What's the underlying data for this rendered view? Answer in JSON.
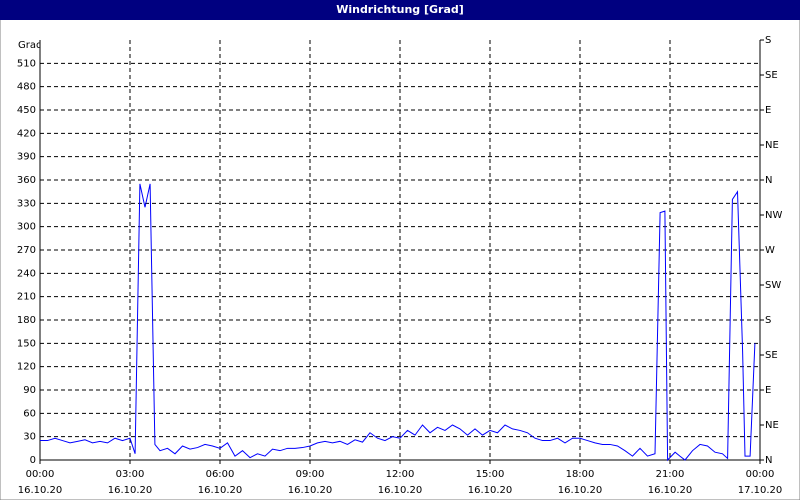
{
  "chart_data": {
    "type": "line",
    "title": "Windrichtung [Grad]",
    "y_label": "Grad",
    "x": [
      0,
      0.25,
      0.5,
      0.75,
      1,
      1.25,
      1.5,
      1.75,
      2,
      2.25,
      2.5,
      2.75,
      3,
      3.17,
      3.33,
      3.5,
      3.67,
      3.83,
      4,
      4.25,
      4.5,
      4.75,
      5,
      5.25,
      5.5,
      5.75,
      6,
      6.25,
      6.5,
      6.75,
      7,
      7.25,
      7.5,
      7.75,
      8,
      8.25,
      8.5,
      8.75,
      9,
      9.25,
      9.5,
      9.75,
      10,
      10.25,
      10.5,
      10.75,
      11,
      11.25,
      11.5,
      11.75,
      12,
      12.25,
      12.5,
      12.75,
      13,
      13.25,
      13.5,
      13.75,
      14,
      14.25,
      14.5,
      14.75,
      15,
      15.25,
      15.5,
      15.75,
      16,
      16.25,
      16.5,
      16.75,
      17,
      17.25,
      17.5,
      17.75,
      18,
      18.25,
      18.5,
      18.75,
      19,
      19.25,
      19.5,
      19.75,
      20,
      20.25,
      20.5,
      20.67,
      20.83,
      20.92,
      21.17,
      21.33,
      21.5,
      21.75,
      22,
      22.25,
      22.5,
      22.75,
      22.92,
      23.08,
      23.25,
      23.42,
      23.5,
      23.67,
      23.83
    ],
    "series": [
      {
        "name": "Windrichtung",
        "color": "#0000ff",
        "values": [
          25,
          25,
          28,
          25,
          22,
          24,
          26,
          22,
          24,
          22,
          28,
          25,
          28,
          8,
          355,
          325,
          355,
          20,
          12,
          15,
          8,
          18,
          14,
          16,
          20,
          18,
          15,
          22,
          5,
          12,
          3,
          8,
          5,
          14,
          12,
          15,
          15,
          16,
          18,
          22,
          24,
          22,
          24,
          20,
          26,
          23,
          35,
          28,
          25,
          30,
          28,
          38,
          32,
          45,
          35,
          42,
          38,
          45,
          40,
          32,
          40,
          32,
          38,
          35,
          45,
          40,
          38,
          35,
          28,
          25,
          25,
          28,
          22,
          28,
          28,
          25,
          22,
          20,
          20,
          18,
          12,
          5,
          15,
          5,
          8,
          318,
          320,
          0,
          10,
          5,
          0,
          12,
          20,
          18,
          10,
          8,
          2,
          335,
          345,
          140,
          5,
          5,
          150
        ]
      }
    ],
    "xlim": [
      0,
      24
    ],
    "xticks": [
      {
        "value": 0,
        "label": "00:00"
      },
      {
        "value": 3,
        "label": "03:00"
      },
      {
        "value": 6,
        "label": "06:00"
      },
      {
        "value": 9,
        "label": "09:00"
      },
      {
        "value": 12,
        "label": "12:00"
      },
      {
        "value": 15,
        "label": "15:00"
      },
      {
        "value": 18,
        "label": "18:00"
      },
      {
        "value": 21,
        "label": "21:00"
      },
      {
        "value": 24,
        "label": "00:00"
      }
    ],
    "xtick_dates": [
      "16.10.20",
      "16.10.20",
      "16.10.20",
      "16.10.20",
      "16.10.20",
      "16.10.20",
      "16.10.20",
      "16.10.20",
      "17.10.20"
    ],
    "ylim": [
      0,
      540
    ],
    "yticks": [
      0,
      30,
      60,
      90,
      120,
      150,
      180,
      210,
      240,
      270,
      300,
      330,
      360,
      390,
      420,
      450,
      480,
      510
    ],
    "y2lim": [
      0,
      540
    ],
    "y2ticks": [
      {
        "value": 0,
        "label": "N"
      },
      {
        "value": 45,
        "label": "NE"
      },
      {
        "value": 90,
        "label": "E"
      },
      {
        "value": 135,
        "label": "SE"
      },
      {
        "value": 180,
        "label": "S"
      },
      {
        "value": 225,
        "label": "SW"
      },
      {
        "value": 270,
        "label": "W"
      },
      {
        "value": 315,
        "label": "NW"
      },
      {
        "value": 360,
        "label": "N"
      },
      {
        "value": 405,
        "label": "NE"
      },
      {
        "value": 450,
        "label": "E"
      },
      {
        "value": 495,
        "label": "SE"
      },
      {
        "value": 540,
        "label": "S"
      }
    ],
    "grid": true
  }
}
